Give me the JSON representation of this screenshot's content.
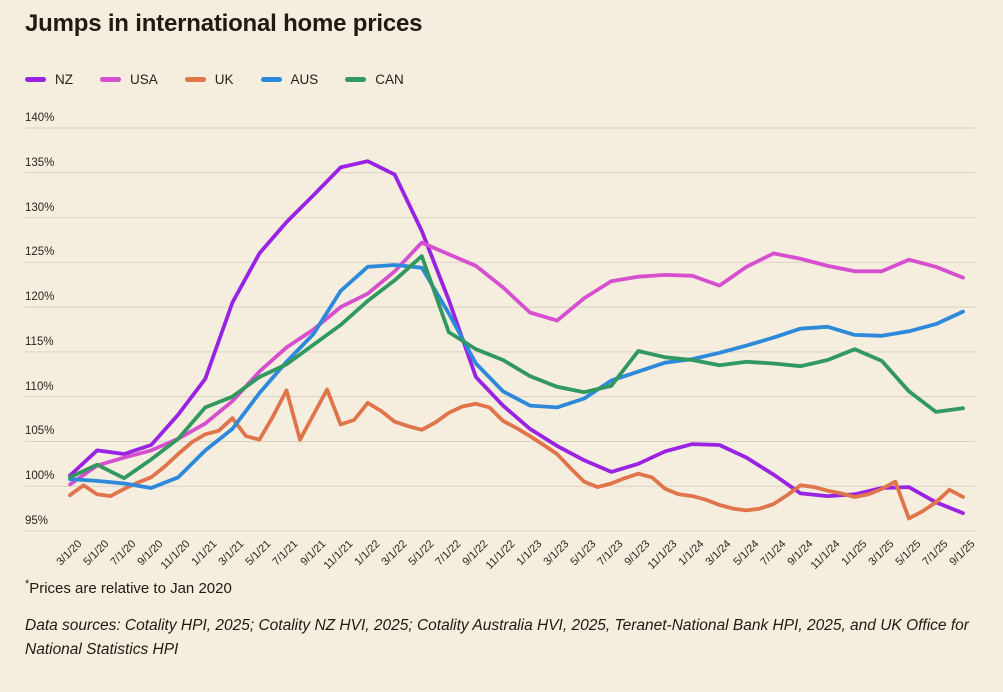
{
  "page": {
    "background_color": "#f5edde",
    "text_color": "#201a11",
    "gridline_color": "#d9d2c2"
  },
  "chart_data": {
    "type": "line",
    "title": "Jumps in international home prices",
    "xlabel": "",
    "ylabel": "",
    "ylim": [
      95,
      140
    ],
    "grid": "horizontal",
    "legend_position": "top-left",
    "ytick_suffix": "%",
    "yticks": [
      95,
      100,
      105,
      110,
      115,
      120,
      125,
      130,
      135,
      140
    ],
    "x_tick_labels": [
      "3/1/20",
      "5/1/20",
      "7/1/20",
      "9/1/20",
      "11/1/20",
      "1/1/21",
      "3/1/21",
      "5/1/21",
      "7/1/21",
      "9/1/21",
      "11/1/21",
      "1/1/22",
      "3/1/22",
      "5/1/22",
      "7/1/22",
      "9/1/22",
      "11/1/22",
      "1/1/23",
      "3/1/23",
      "5/1/23",
      "7/1/23",
      "9/1/23",
      "11/1/23",
      "1/1/24",
      "3/1/24",
      "5/1/24",
      "7/1/24",
      "9/1/24",
      "11/1/24",
      "1/1/25",
      "3/1/25",
      "5/1/25",
      "7/1/25",
      "9/1/25"
    ],
    "series": [
      {
        "name": "NZ",
        "color": "#9a23e3",
        "values": [
          101.2,
          104.0,
          103.6,
          104.6,
          108.0,
          112.0,
          120.5,
          126.0,
          129.5,
          132.5,
          135.6,
          136.3,
          134.8,
          128.5,
          120.8,
          112.2,
          109.0,
          106.4,
          104.5,
          102.9,
          101.6,
          102.5,
          103.9,
          104.7,
          104.6,
          103.2,
          101.3,
          99.2,
          98.9,
          99.1,
          99.8,
          99.9,
          98.2,
          97.0
        ]
      },
      {
        "name": "USA",
        "color": "#d64fcf",
        "values": [
          100.2,
          102.3,
          103.2,
          104.0,
          105.3,
          107.0,
          109.5,
          112.8,
          115.5,
          117.5,
          120.0,
          121.5,
          124.0,
          127.2,
          125.9,
          124.6,
          122.2,
          119.4,
          118.5,
          121.0,
          122.9,
          123.4,
          123.6,
          123.5,
          122.4,
          124.5,
          126.0,
          125.4,
          124.6,
          124.0,
          124.0,
          125.3,
          124.5,
          123.3
        ]
      },
      {
        "name": "UK",
        "color": "#e0744a",
        "values": [
          99.0,
          100.1,
          99.1,
          98.9,
          99.7,
          100.4,
          101.0,
          102.2,
          103.6,
          104.9,
          105.8,
          106.2,
          107.6,
          105.6,
          105.2,
          107.8,
          110.7,
          105.2,
          108.0,
          110.8,
          106.9,
          107.4,
          109.3,
          108.4,
          107.2,
          106.7,
          106.3,
          107.1,
          108.2,
          108.9,
          109.2,
          108.8,
          107.3,
          106.5,
          105.6,
          104.6,
          103.6,
          102.0,
          100.5,
          99.9,
          100.3,
          100.9,
          101.4,
          101.0,
          99.7,
          99.1,
          98.9,
          98.5,
          97.9,
          97.5,
          97.3,
          97.5,
          98.0,
          99.0,
          100.1,
          99.9,
          99.5,
          99.2,
          98.8,
          99.1,
          99.7,
          100.5,
          96.4,
          97.2,
          98.2,
          99.6,
          98.8
        ]
      },
      {
        "name": "AUS",
        "color": "#2d89da",
        "values": [
          100.8,
          100.6,
          100.3,
          99.8,
          101.0,
          104.0,
          106.4,
          110.4,
          113.9,
          117.0,
          121.8,
          124.5,
          124.7,
          124.4,
          119.3,
          113.7,
          110.6,
          109.0,
          108.8,
          109.8,
          111.8,
          112.8,
          113.8,
          114.2,
          114.9,
          115.7,
          116.6,
          117.6,
          117.8,
          116.9,
          116.8,
          117.3,
          118.1,
          119.5
        ]
      },
      {
        "name": "CAN",
        "color": "#31985f",
        "values": [
          101.0,
          102.4,
          100.9,
          103.0,
          105.3,
          108.8,
          110.0,
          112.2,
          113.6,
          115.8,
          118.0,
          120.7,
          123.0,
          125.7,
          117.2,
          115.3,
          114.1,
          112.3,
          111.1,
          110.5,
          111.2,
          115.1,
          114.4,
          114.1,
          113.5,
          113.9,
          113.7,
          113.4,
          114.1,
          115.3,
          114.0,
          110.6,
          108.3,
          108.7
        ]
      }
    ]
  },
  "footnotes": {
    "asterisk": "*",
    "note": "Prices are relative to Jan 2020",
    "sources": "Data sources: Cotality HPI, 2025; Cotality NZ HVI, 2025; Cotality Australia HVI, 2025, Teranet-National Bank HPI, 2025, and UK Office for National Statistics HPI"
  }
}
